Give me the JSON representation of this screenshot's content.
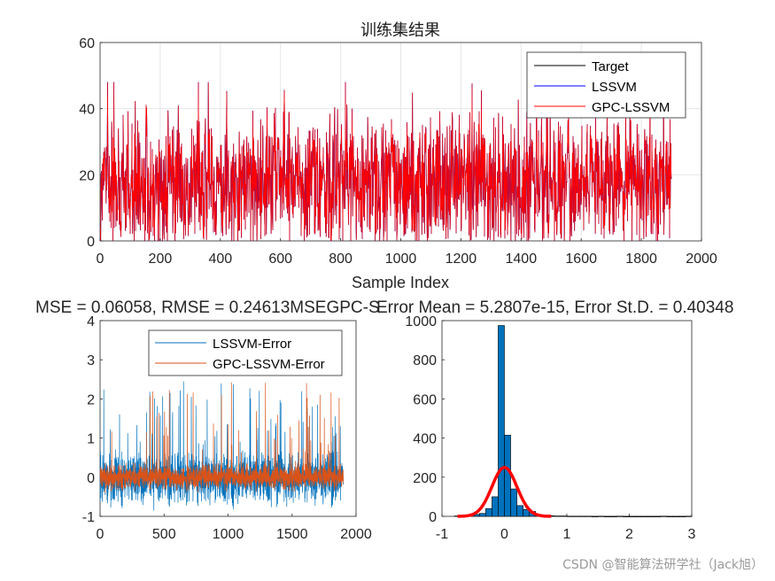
{
  "chart_data": [
    {
      "type": "line",
      "title": "训练集结果",
      "xlabel": "Sample Index",
      "ylabel": "",
      "xlim": [
        0,
        2000
      ],
      "ylim": [
        0,
        60
      ],
      "xticks": [
        "0",
        "200",
        "400",
        "600",
        "800",
        "1000",
        "1200",
        "1400",
        "1600",
        "1800",
        "2000"
      ],
      "yticks": [
        "0",
        "20",
        "40",
        "60"
      ],
      "n_samples": 1900,
      "series": [
        {
          "name": "Target",
          "color": "#000000"
        },
        {
          "name": "LSSVM",
          "color": "#0000ff"
        },
        {
          "name": "GPC-LSSVM",
          "color": "#ff0000"
        }
      ],
      "value_range": {
        "min": 0,
        "max": 48,
        "typical_low": 5,
        "typical_high": 35,
        "center": 18
      },
      "grid": true,
      "legend_position": "top-right"
    },
    {
      "type": "line",
      "title": "MSE = 0.06058, RMSE = 0.24613MSEGPC-S",
      "xlabel": "",
      "xlim": [
        0,
        2000
      ],
      "ylim": [
        -1,
        4
      ],
      "xticks": [
        "0",
        "500",
        "1000",
        "1500",
        "2000"
      ],
      "yticks": [
        "-1",
        "0",
        "1",
        "2",
        "3",
        "4"
      ],
      "n_samples": 1900,
      "series": [
        {
          "name": "LSSVM-Error",
          "color": "#0072bd"
        },
        {
          "name": "GPC-LSSVM-Error",
          "color": "#d95319"
        }
      ],
      "value_range": {
        "min": -0.9,
        "max": 2.6,
        "typical": [
          -0.5,
          0.6
        ]
      },
      "grid": false,
      "legend_position": "top-center"
    },
    {
      "type": "bar",
      "title": "Error Mean = 5.2807e-15, Error St.D. = 0.40348",
      "xlim": [
        -1,
        3
      ],
      "ylim": [
        0,
        1000
      ],
      "xticks": [
        "-1",
        "0",
        "1",
        "2",
        "3"
      ],
      "yticks": [
        "0",
        "200",
        "400",
        "600",
        "800",
        "1000"
      ],
      "histogram": {
        "bin_centers": [
          -0.75,
          -0.65,
          -0.55,
          -0.45,
          -0.35,
          -0.25,
          -0.15,
          -0.05,
          0.05,
          0.15,
          0.25,
          0.35,
          0.45,
          0.55,
          0.65,
          0.75,
          0.85,
          0.95,
          1.05,
          1.15,
          1.25,
          1.35,
          1.45,
          1.55,
          1.65,
          1.75,
          1.85,
          1.95,
          2.05,
          2.15,
          2.25,
          2.35,
          2.45,
          2.55,
          2.65,
          2.75,
          2.85,
          2.95
        ],
        "counts": [
          2,
          3,
          5,
          10,
          15,
          40,
          100,
          975,
          415,
          140,
          55,
          35,
          25,
          10,
          5,
          3,
          2,
          2,
          1,
          1,
          1,
          1,
          0,
          1,
          0,
          0,
          1,
          0,
          0,
          0,
          0,
          0,
          0,
          1,
          0,
          0,
          0,
          1
        ],
        "bar_color": "#0072bd"
      },
      "fit_curve": {
        "color": "#ff0000",
        "peak": 250,
        "mean": 0.0,
        "std": 0.2,
        "range": [
          -0.75,
          0.75
        ]
      }
    }
  ],
  "watermark": "CSDN @智能算法研学社（Jack旭）"
}
